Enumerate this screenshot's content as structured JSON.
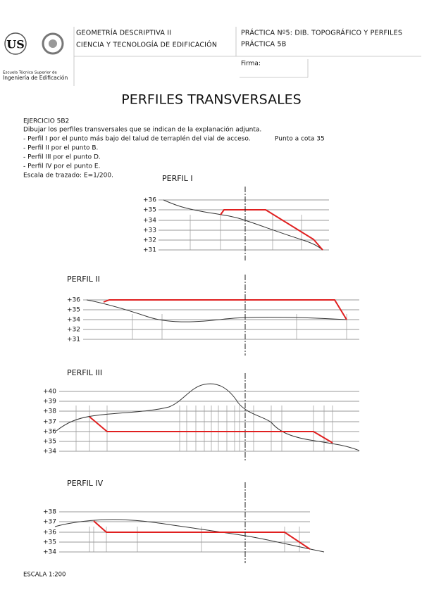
{
  "header": {
    "subject": "GEOMETRÍA DESCRIPTIVA II",
    "degree": "CIENCIA Y TECNOLOGÍA DE EDIFICACIÓN",
    "practice": "PRÁCTICA Nº5: DIB. TOPOGRÁFICO Y PERFILES",
    "practice_code": "PRÁCTICA 5B",
    "signature": "Firma:",
    "school_line1": "Escuela Técnica Superior de",
    "school_line2": "Ingeniería de Edificación"
  },
  "title": "PERFILES TRANSVERSALES",
  "exercise": {
    "heading": "EJERCICIO 5B2",
    "instruction": "Dibujar los perfiles transversales que se indican de la explanación adjunta.",
    "items": [
      "- Perfil I por el punto más bajo del talud de terraplén del vial de acceso.",
      "- Perfil II por el punto B.",
      "- Perfil III por el punto D.",
      "- Perfil IV por el punto E."
    ],
    "note": "Punto a cota 35",
    "scale": "Escala de trazado: E=1/200."
  },
  "profiles": [
    {
      "label": "PERFIL I",
      "levels": [
        "+36",
        "+35",
        "+34",
        "+33",
        "+32",
        "+31"
      ]
    },
    {
      "label": "PERFIL II",
      "levels": [
        "+36",
        "+35",
        "+34",
        "+32",
        "+31"
      ]
    },
    {
      "label": "PERFIL III",
      "levels": [
        "+40",
        "+39",
        "+38",
        "+37",
        "+36",
        "+35",
        "+34"
      ]
    },
    {
      "label": "PERFIL IV",
      "levels": [
        "+38",
        "+37",
        "+36",
        "+35",
        "+34"
      ]
    }
  ],
  "footer": "ESCALA 1:200"
}
